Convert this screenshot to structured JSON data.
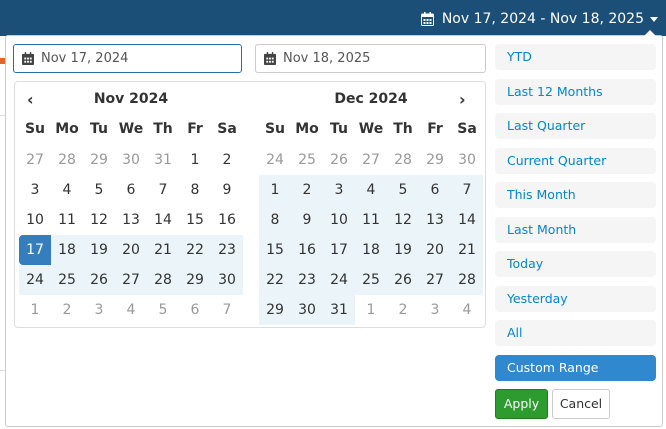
{
  "header": {
    "range_label": "Nov 17, 2024 - Nov 18, 2025",
    "icon": "calendar-icon"
  },
  "inputs": {
    "start": "Nov 17, 2024",
    "end": "Nov 18, 2025"
  },
  "days_of_week": [
    "Su",
    "Mo",
    "Tu",
    "We",
    "Th",
    "Fr",
    "Sa"
  ],
  "calendars": [
    {
      "title": "Nov 2024",
      "weeks": [
        [
          27,
          28,
          29,
          30,
          31,
          1,
          2
        ],
        [
          3,
          4,
          5,
          6,
          7,
          8,
          9
        ],
        [
          10,
          11,
          12,
          13,
          14,
          15,
          16
        ],
        [
          17,
          18,
          19,
          20,
          21,
          22,
          23
        ],
        [
          24,
          25,
          26,
          27,
          28,
          29,
          30
        ],
        [
          1,
          2,
          3,
          4,
          5,
          6,
          7
        ]
      ]
    },
    {
      "title": "Dec 2024",
      "weeks": [
        [
          24,
          25,
          26,
          27,
          28,
          29,
          30
        ],
        [
          1,
          2,
          3,
          4,
          5,
          6,
          7
        ],
        [
          8,
          9,
          10,
          11,
          12,
          13,
          14
        ],
        [
          15,
          16,
          17,
          18,
          19,
          20,
          21
        ],
        [
          22,
          23,
          24,
          25,
          26,
          27,
          28
        ],
        [
          29,
          30,
          31,
          1,
          2,
          3,
          4
        ]
      ]
    }
  ],
  "selected_start": "Nov 17, 2024",
  "ranges": [
    "YTD",
    "Last 12 Months",
    "Last Quarter",
    "Current Quarter",
    "This Month",
    "Last Month",
    "Today",
    "Yesterday",
    "All",
    "Custom Range"
  ],
  "active_range": "Custom Range",
  "buttons": {
    "apply": "Apply",
    "cancel": "Cancel"
  },
  "colors": {
    "header": "#1b4f78",
    "selected": "#357ebd",
    "in_range": "#ebf4f8",
    "apply": "#2e9b2e",
    "active_range": "#3088cf"
  }
}
